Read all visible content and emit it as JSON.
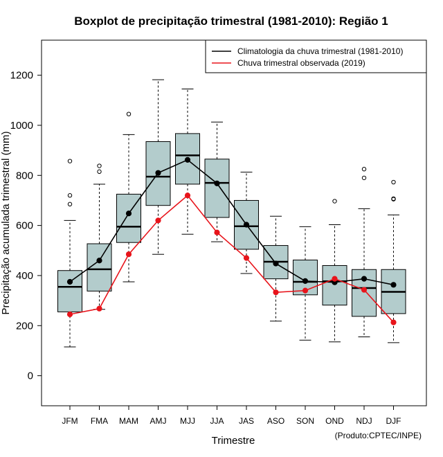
{
  "chart_data": {
    "type": "boxplot",
    "title": "Boxplot de precipitação trimestral (1981-2010): Região 1",
    "xlabel": "Trimestre",
    "ylabel": "Precipitação acumulada trimestral (mm)",
    "credit": "(Produto:CPTEC/INPE)",
    "ylim": [
      -120,
      1340
    ],
    "yticks": [
      0,
      200,
      400,
      600,
      800,
      1000,
      1200
    ],
    "ytick_labels": [
      "0",
      "200",
      "400",
      "600",
      "800",
      "1000",
      "1200"
    ],
    "categories": [
      "JFM",
      "FMA",
      "MAM",
      "AMJ",
      "MJJ",
      "JJA",
      "JAS",
      "ASO",
      "SON",
      "OND",
      "NDJ",
      "DJF"
    ],
    "boxes": [
      {
        "whisker_low": 115,
        "q1": 255,
        "median": 355,
        "q3": 420,
        "whisker_high": 620,
        "outliers": [
          685,
          720,
          857
        ]
      },
      {
        "whisker_low": 265,
        "q1": 338,
        "median": 425,
        "q3": 527,
        "whisker_high": 765,
        "outliers": [
          815,
          838
        ]
      },
      {
        "whisker_low": 375,
        "q1": 532,
        "median": 595,
        "q3": 725,
        "whisker_high": 963,
        "outliers": [
          1045
        ]
      },
      {
        "whisker_low": 485,
        "q1": 680,
        "median": 795,
        "q3": 935,
        "whisker_high": 1182,
        "outliers": []
      },
      {
        "whisker_low": 565,
        "q1": 765,
        "median": 880,
        "q3": 967,
        "whisker_high": 1145,
        "outliers": []
      },
      {
        "whisker_low": 535,
        "q1": 632,
        "median": 770,
        "q3": 865,
        "whisker_high": 1013,
        "outliers": []
      },
      {
        "whisker_low": 408,
        "q1": 505,
        "median": 597,
        "q3": 700,
        "whisker_high": 813,
        "outliers": []
      },
      {
        "whisker_low": 218,
        "q1": 387,
        "median": 455,
        "q3": 520,
        "whisker_high": 637,
        "outliers": []
      },
      {
        "whisker_low": 142,
        "q1": 323,
        "median": 375,
        "q3": 462,
        "whisker_high": 595,
        "outliers": []
      },
      {
        "whisker_low": 135,
        "q1": 282,
        "median": 377,
        "q3": 440,
        "whisker_high": 603,
        "outliers": [
          697
        ]
      },
      {
        "whisker_low": 155,
        "q1": 237,
        "median": 350,
        "q3": 424,
        "whisker_high": 667,
        "outliers": [
          790,
          825
        ]
      },
      {
        "whisker_low": 132,
        "q1": 248,
        "median": 335,
        "q3": 424,
        "whisker_high": 642,
        "outliers": [
          705,
          707,
          773
        ]
      }
    ],
    "series": [
      {
        "name": "Climatologia da chuva trimestral (1981-2010)",
        "color": "#000000",
        "values": [
          375,
          460,
          648,
          810,
          862,
          768,
          603,
          448,
          378,
          373,
          387,
          363
        ]
      },
      {
        "name": "Chuva trimestral observada (2019)",
        "color": "#e8141b",
        "values": [
          245,
          268,
          485,
          620,
          720,
          572,
          470,
          333,
          340,
          387,
          343,
          213
        ]
      }
    ],
    "legend_position": "top-right",
    "box_fill": "#b3cccc"
  }
}
